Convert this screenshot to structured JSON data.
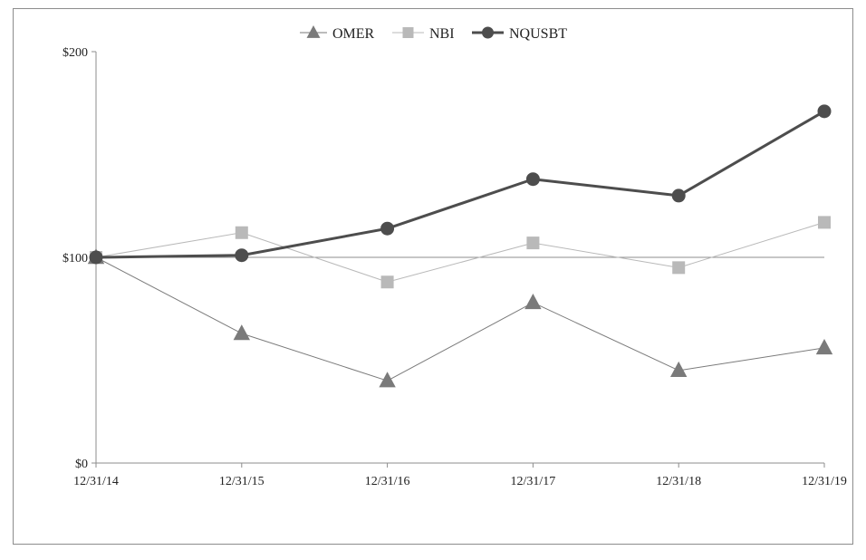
{
  "chart_data": {
    "type": "line",
    "categories": [
      "12/31/14",
      "12/31/15",
      "12/31/16",
      "12/31/17",
      "12/31/18",
      "12/31/19"
    ],
    "y_ticks": [
      "$0",
      "$100",
      "$200"
    ],
    "ylim": [
      0,
      200
    ],
    "legend_position": "top-center",
    "grid": false,
    "reference_line": 100,
    "series": [
      {
        "name": "OMER",
        "marker": "triangle",
        "color": "#7a7a7a",
        "line_width": 1,
        "values": [
          100,
          63,
          40,
          78,
          45,
          56
        ]
      },
      {
        "name": "NBI",
        "marker": "square",
        "color": "#b9b9b9",
        "line_width": 1,
        "values": [
          100,
          112,
          88,
          107,
          95,
          117
        ]
      },
      {
        "name": "NQUSBT",
        "marker": "circle",
        "color": "#4d4d4d",
        "line_width": 3,
        "values": [
          100,
          101,
          114,
          138,
          130,
          171
        ]
      }
    ]
  }
}
